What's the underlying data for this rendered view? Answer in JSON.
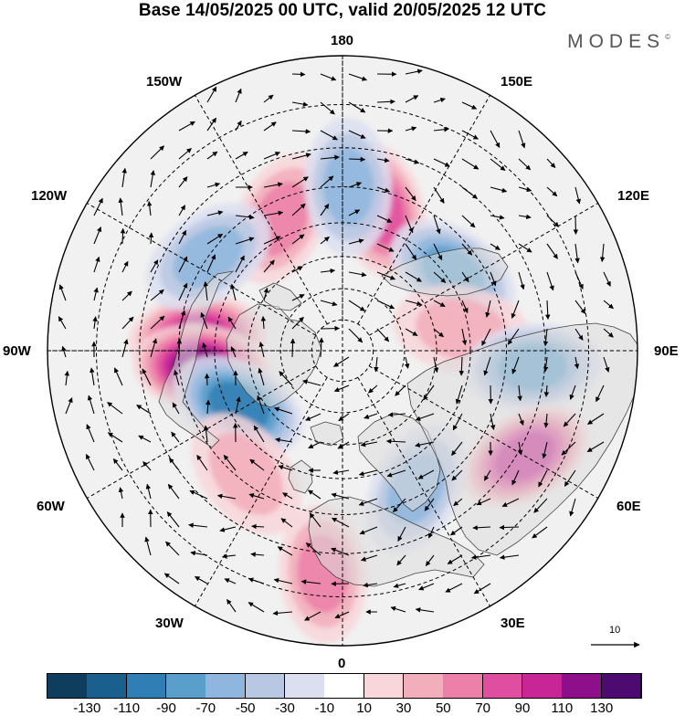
{
  "title": "Base 14/05/2025 00 UTC, valid 20/05/2025 12 UTC",
  "brand": {
    "name": "MODES",
    "mark": "©"
  },
  "longitude_labels": {
    "lon_180": "180",
    "lon_150W": "150W",
    "lon_150E": "150E",
    "lon_120W": "120W",
    "lon_120E": "120E",
    "lon_90W": "90W",
    "lon_90E": "90E",
    "lon_60W": "60W",
    "lon_60E": "60E",
    "lon_30W": "30W",
    "lon_30E": "30E",
    "lon_0": "0"
  },
  "reference_vector": {
    "label": "10"
  },
  "colorbar": {
    "colors": [
      "#0e3d5e",
      "#1b5f8e",
      "#2f7fb4",
      "#5a9fcc",
      "#8fb6de",
      "#b9c8e2",
      "#dcdff0",
      "#ffffff",
      "#f8d6d9",
      "#f2aebb",
      "#ec80a8",
      "#e04f9f",
      "#c82596",
      "#8d0f8a",
      "#4d0b72"
    ],
    "tick_labels": [
      "-130",
      "-110",
      "-90",
      "-70",
      "-50",
      "-30",
      "-10",
      "10",
      "30",
      "50",
      "70",
      "90",
      "110",
      "130"
    ]
  },
  "anomaly_centers": [
    {
      "lon": -95,
      "lat": 45,
      "value": 80
    },
    {
      "lon": -83,
      "lat": 46,
      "value": 100
    },
    {
      "lon": -62,
      "lat": 53,
      "value": -90
    },
    {
      "lon": -155,
      "lat": 45,
      "value": 40
    },
    {
      "lon": 165,
      "lat": 45,
      "value": 70
    },
    {
      "lon": 178,
      "lat": 40,
      "value": -50
    },
    {
      "lon": 125,
      "lat": 48,
      "value": -70
    },
    {
      "lon": 100,
      "lat": 52,
      "value": 30
    },
    {
      "lon": 85,
      "lat": 33,
      "value": -60
    },
    {
      "lon": 60,
      "lat": 28,
      "value": 80
    },
    {
      "lon": -38,
      "lat": 42,
      "value": 30
    },
    {
      "lon": -5,
      "lat": 25,
      "value": 40
    },
    {
      "lon": 28,
      "lat": 42,
      "value": -40
    },
    {
      "lon": -125,
      "lat": 40,
      "value": -40
    }
  ]
}
